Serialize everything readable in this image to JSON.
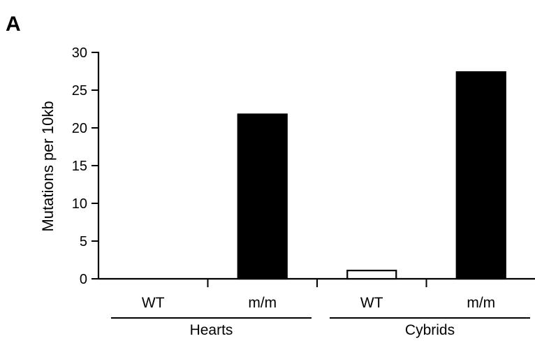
{
  "panel_label": "A",
  "chart_data": {
    "type": "bar",
    "title": "",
    "xlabel": "",
    "ylabel": "Mutations per 10kb",
    "ylim": [
      0,
      30
    ],
    "yticks": [
      0,
      5,
      10,
      15,
      20,
      25,
      30
    ],
    "categories": [
      "WT",
      "m/m",
      "WT",
      "m/m"
    ],
    "groups": [
      {
        "label": "Hearts",
        "categories": [
          0,
          1
        ]
      },
      {
        "label": "Cybrids",
        "categories": [
          2,
          3
        ]
      }
    ],
    "values": [
      0,
      21.8,
      1.1,
      27.4
    ],
    "bar_fills": [
      "#000000",
      "#000000",
      "#ffffff",
      "#000000"
    ],
    "bar_stroke": "#000000",
    "grid": false,
    "legend": "none"
  }
}
